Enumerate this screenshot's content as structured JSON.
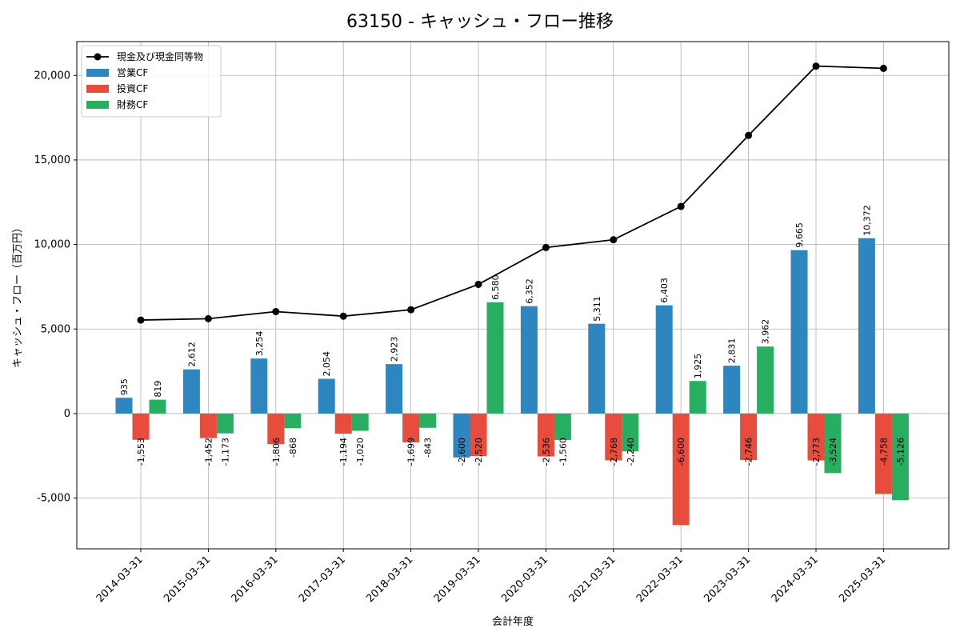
{
  "chart_data": {
    "type": "bar",
    "title": "63150 - キャッシュ・フロー推移",
    "xlabel": "会計年度",
    "ylabel": "キャッシュ・フロー（百万円）",
    "ylim": [
      -8000,
      22000
    ],
    "yticks": [
      -5000,
      0,
      5000,
      10000,
      15000,
      20000
    ],
    "ytick_labels": [
      "-5,000",
      "0",
      "5,000",
      "10,000",
      "15,000",
      "20,000"
    ],
    "grid": true,
    "legend_position": "top-left",
    "categories": [
      "2014-03-31",
      "2015-03-31",
      "2016-03-31",
      "2017-03-31",
      "2018-03-31",
      "2019-03-31",
      "2020-03-31",
      "2021-03-31",
      "2022-03-31",
      "2023-03-31",
      "2024-03-31",
      "2025-03-31"
    ],
    "series": [
      {
        "name": "営業CF",
        "kind": "bar",
        "color": "#2e86c1",
        "values": [
          935,
          2612,
          3254,
          2054,
          2923,
          -2600,
          6352,
          5311,
          6403,
          2831,
          9665,
          10372
        ],
        "labels": [
          "935",
          "2,612",
          "3,254",
          "2,054",
          "2,923",
          "-2,600",
          "6,352",
          "5,311",
          "6,403",
          "2,831",
          "9,665",
          "10,372"
        ]
      },
      {
        "name": "投資CF",
        "kind": "bar",
        "color": "#e74c3c",
        "values": [
          -1553,
          -1452,
          -1806,
          -1194,
          -1699,
          -2520,
          -2536,
          -2768,
          -6600,
          -2746,
          -2773,
          -4758
        ],
        "labels": [
          "-1,553",
          "-1,452",
          "-1,806",
          "-1,194",
          "-1,699",
          "-2,520",
          "-2,536",
          "-2,768",
          "-6,600",
          "-2,746",
          "-2,773",
          "-4,758"
        ]
      },
      {
        "name": "財務CF",
        "kind": "bar",
        "color": "#27ae60",
        "values": [
          819,
          -1173,
          -868,
          -1020,
          -843,
          6580,
          -1560,
          -2240,
          1925,
          3962,
          -3524,
          -5126
        ],
        "labels": [
          "819",
          "-1,173",
          "-868",
          "-1,020",
          "-843",
          "6,580",
          "-1,560",
          "-2,240",
          "1,925",
          "3,962",
          "-3,524",
          "-5,126"
        ]
      },
      {
        "name": "現金及び現金同等物",
        "kind": "line",
        "color": "#000000",
        "values": [
          5530,
          5610,
          6030,
          5760,
          6140,
          7640,
          9820,
          10280,
          12250,
          16450,
          20550,
          20420
        ]
      }
    ]
  }
}
